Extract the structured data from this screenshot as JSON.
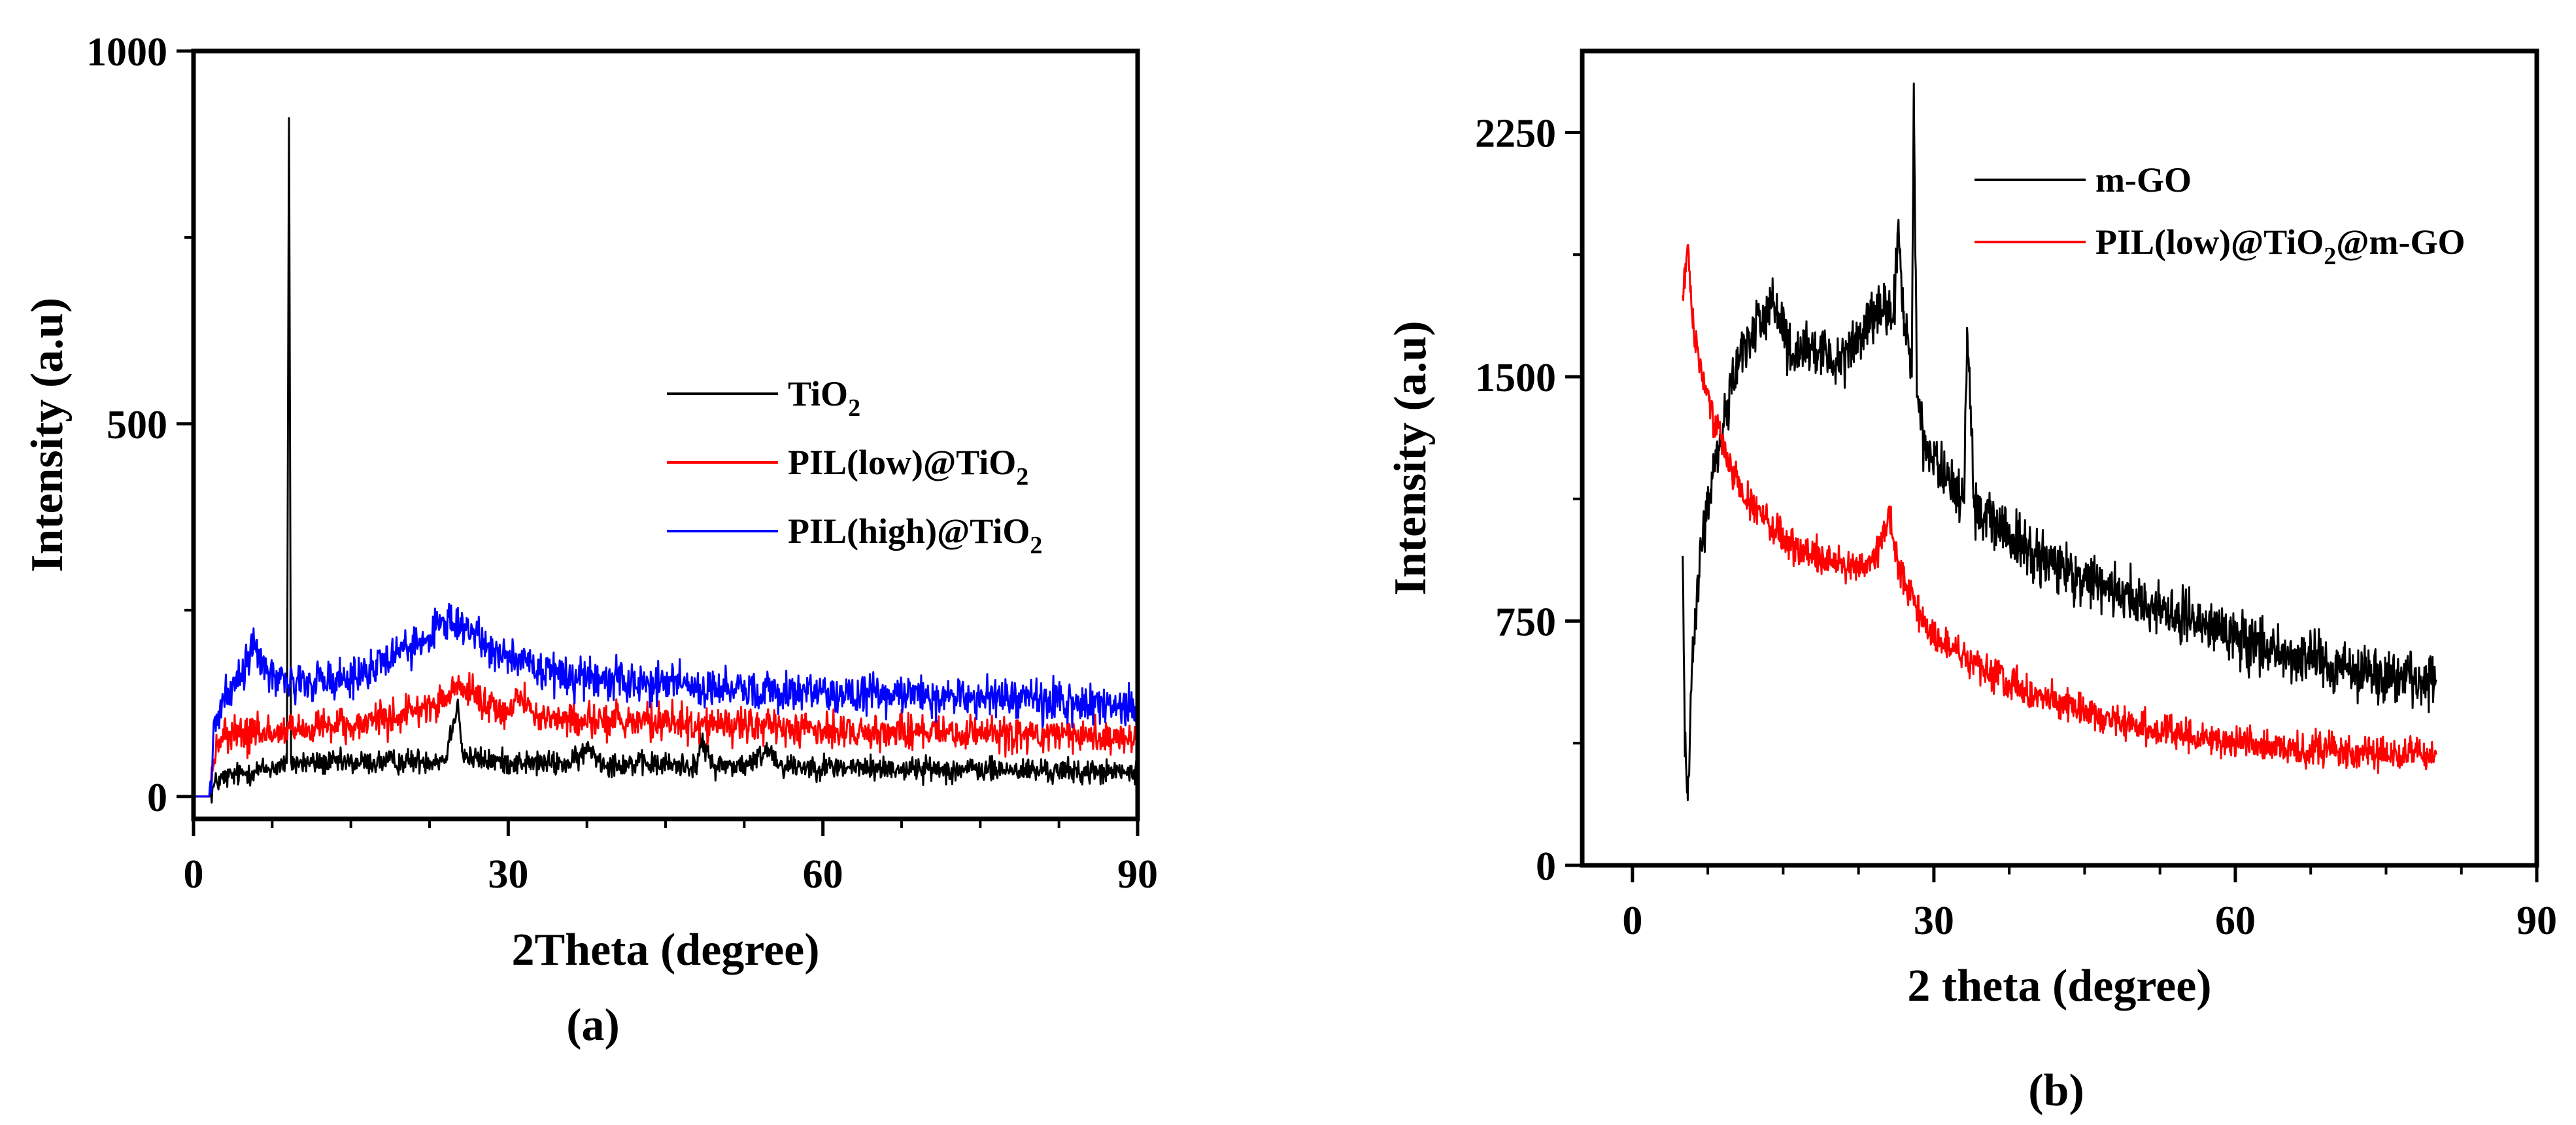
{
  "figure": {
    "panels": [
      "(a)",
      "(b)"
    ]
  },
  "chart_data": [
    {
      "type": "line",
      "panel": "(a)",
      "title": "",
      "xlabel": "2Theta (degree)",
      "ylabel": "Intensity (a.u)",
      "xlim": [
        0,
        90
      ],
      "ylim": [
        -30,
        1000
      ],
      "xticks": [
        0,
        30,
        60,
        90
      ],
      "yticks": [
        0,
        500,
        1000
      ],
      "legend_position": "center-right",
      "series": [
        {
          "name": "TiO2",
          "label_main": "TiO",
          "label_sub": "2",
          "label_tail": "",
          "color": "#000000",
          "noise": 18,
          "x": [
            0,
            1.5,
            2.2,
            3,
            5,
            8,
            8.9,
            9.1,
            9.3,
            11,
            15,
            20,
            24,
            25.2,
            25.6,
            26.2,
            28,
            32,
            36,
            37.8,
            39,
            44,
            48,
            48.4,
            49.5,
            53,
            54.8,
            56,
            60,
            65,
            70,
            75,
            80,
            85,
            90
          ],
          "y": [
            0,
            0,
            20,
            25,
            32,
            40,
            45,
            910,
            45,
            45,
            45,
            47,
            50,
            130,
            60,
            52,
            48,
            45,
            44,
            65,
            45,
            43,
            42,
            75,
            42,
            42,
            65,
            42,
            40,
            38,
            37,
            36,
            35,
            33,
            32
          ]
        },
        {
          "name": "PIL(low)@TiO2",
          "label_main": "PIL(low)@TiO",
          "label_sub": "2",
          "label_tail": "",
          "color": "#ff0000",
          "noise": 26,
          "x": [
            0,
            1.5,
            2.2,
            3,
            6,
            10,
            15,
            20,
            23,
            25.6,
            28,
            30,
            31,
            33,
            40,
            45,
            50,
            55,
            60,
            65,
            70,
            75,
            80,
            85,
            90
          ],
          "y": [
            0,
            0,
            70,
            80,
            85,
            88,
            95,
            110,
            125,
            145,
            120,
            110,
            135,
            105,
            102,
            100,
            95,
            92,
            90,
            88,
            86,
            84,
            82,
            80,
            78
          ]
        },
        {
          "name": "PIL(high)@TiO2",
          "label_main": "PIL(high)@TiO",
          "label_sub": "2",
          "label_tail": "",
          "color": "#0000ff",
          "noise": 30,
          "x": [
            0,
            1.5,
            2.2,
            3,
            4.5,
            5.8,
            7,
            9,
            12,
            16,
            20,
            24,
            26,
            28,
            30,
            33,
            36,
            40,
            45,
            50,
            55,
            60,
            65,
            70,
            75,
            80,
            85,
            90
          ],
          "y": [
            0,
            0,
            110,
            130,
            165,
            210,
            165,
            150,
            155,
            165,
            195,
            235,
            225,
            205,
            190,
            170,
            160,
            155,
            150,
            145,
            142,
            140,
            138,
            135,
            132,
            128,
            125,
            120
          ]
        }
      ]
    },
    {
      "type": "line",
      "panel": "(b)",
      "title": "",
      "xlabel": "2 theta (degree)",
      "ylabel": "Intensity (a.u)",
      "xlim": [
        -5,
        90
      ],
      "ylim": [
        0,
        2500
      ],
      "xticks": [
        0,
        30,
        60,
        90
      ],
      "yticks": [
        0,
        750,
        1500,
        2250
      ],
      "legend_position": "top-right",
      "series": [
        {
          "name": "m-GO",
          "label_main": "m-GO",
          "label_sub": "",
          "label_tail": "",
          "color": "#000000",
          "noise": 90,
          "x": [
            5,
            5.2,
            5.5,
            6,
            7,
            8,
            9,
            10,
            12,
            14,
            16,
            18,
            20,
            22,
            24,
            26,
            26.5,
            27,
            27.8,
            28,
            28.3,
            29,
            30,
            32,
            33,
            33.3,
            34,
            36,
            40,
            45,
            50,
            55,
            60,
            65,
            70,
            75,
            80
          ],
          "y": [
            950,
            420,
            200,
            700,
            1000,
            1200,
            1350,
            1500,
            1650,
            1720,
            1550,
            1580,
            1550,
            1600,
            1680,
            1700,
            1950,
            1700,
            1500,
            2400,
            1450,
            1300,
            1250,
            1150,
            1120,
            1650,
            1100,
            1050,
            950,
            880,
            820,
            760,
            700,
            650,
            610,
            580,
            570
          ]
        },
        {
          "name": "PIL(low)@TiO2@m-GO",
          "label_main": "PIL(low)@TiO",
          "label_sub": "2",
          "label_tail": "@m-GO",
          "color": "#ff0000",
          "noise": 55,
          "x": [
            5,
            5.5,
            6,
            7,
            8,
            10,
            12,
            15,
            18,
            20,
            22,
            24,
            25.5,
            26.5,
            28,
            30,
            35,
            40,
            45,
            50,
            55,
            60,
            65,
            70,
            75,
            80
          ],
          "y": [
            1750,
            1900,
            1650,
            1500,
            1380,
            1200,
            1100,
            1000,
            950,
            930,
            910,
            930,
            1080,
            920,
            800,
            700,
            600,
            520,
            470,
            430,
            400,
            380,
            360,
            350,
            345,
            340
          ]
        }
      ]
    }
  ]
}
